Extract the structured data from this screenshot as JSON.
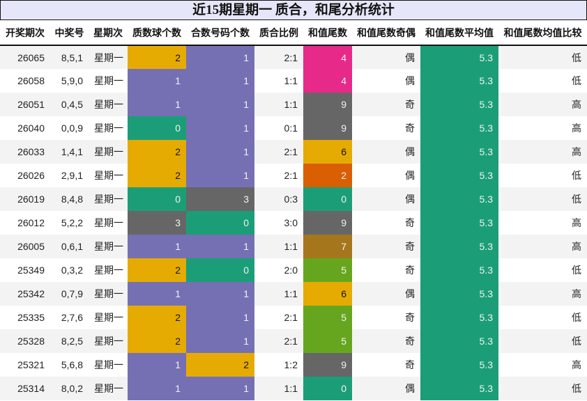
{
  "title": "近15期星期一 质合，和尾分析统计",
  "colors": {
    "yellow": "#e6ab02",
    "purple": "#7570b3",
    "green": "#1b9e77",
    "gray": "#666666",
    "pink": "#e7298a",
    "orange": "#d95f02",
    "brown": "#a6761d",
    "lime": "#66a61e",
    "title_bg": "#e6e6fa"
  },
  "columns": [
    "开奖期次",
    "中奖号",
    "星期次",
    "质数球个数",
    "合数号码个数",
    "质合比例",
    "和值尾数",
    "和值尾数奇偶",
    "和值尾数平均值",
    "和值尾数均值比较"
  ],
  "rows": [
    {
      "period": "26065",
      "numbers": "8,5,1",
      "weekday": "星期一",
      "prime": "2",
      "composite": "1",
      "ratio": "2:1",
      "tail": "4",
      "parity": "偶",
      "avg": "5.3",
      "compare": "低"
    },
    {
      "period": "26058",
      "numbers": "5,9,0",
      "weekday": "星期一",
      "prime": "1",
      "composite": "1",
      "ratio": "1:1",
      "tail": "4",
      "parity": "偶",
      "avg": "5.3",
      "compare": "低"
    },
    {
      "period": "26051",
      "numbers": "0,4,5",
      "weekday": "星期一",
      "prime": "1",
      "composite": "1",
      "ratio": "1:1",
      "tail": "9",
      "parity": "奇",
      "avg": "5.3",
      "compare": "高"
    },
    {
      "period": "26040",
      "numbers": "0,0,9",
      "weekday": "星期一",
      "prime": "0",
      "composite": "1",
      "ratio": "0:1",
      "tail": "9",
      "parity": "奇",
      "avg": "5.3",
      "compare": "高"
    },
    {
      "period": "26033",
      "numbers": "1,4,1",
      "weekday": "星期一",
      "prime": "2",
      "composite": "1",
      "ratio": "2:1",
      "tail": "6",
      "parity": "偶",
      "avg": "5.3",
      "compare": "高"
    },
    {
      "period": "26026",
      "numbers": "2,9,1",
      "weekday": "星期一",
      "prime": "2",
      "composite": "1",
      "ratio": "2:1",
      "tail": "2",
      "parity": "偶",
      "avg": "5.3",
      "compare": "低"
    },
    {
      "period": "26019",
      "numbers": "8,4,8",
      "weekday": "星期一",
      "prime": "0",
      "composite": "3",
      "ratio": "0:3",
      "tail": "0",
      "parity": "偶",
      "avg": "5.3",
      "compare": "低"
    },
    {
      "period": "26012",
      "numbers": "5,2,2",
      "weekday": "星期一",
      "prime": "3",
      "composite": "0",
      "ratio": "3:0",
      "tail": "9",
      "parity": "奇",
      "avg": "5.3",
      "compare": "高"
    },
    {
      "period": "26005",
      "numbers": "0,6,1",
      "weekday": "星期一",
      "prime": "1",
      "composite": "1",
      "ratio": "1:1",
      "tail": "7",
      "parity": "奇",
      "avg": "5.3",
      "compare": "高"
    },
    {
      "period": "25349",
      "numbers": "0,3,2",
      "weekday": "星期一",
      "prime": "2",
      "composite": "0",
      "ratio": "2:0",
      "tail": "5",
      "parity": "奇",
      "avg": "5.3",
      "compare": "低"
    },
    {
      "period": "25342",
      "numbers": "0,7,9",
      "weekday": "星期一",
      "prime": "1",
      "composite": "1",
      "ratio": "1:1",
      "tail": "6",
      "parity": "偶",
      "avg": "5.3",
      "compare": "高"
    },
    {
      "period": "25335",
      "numbers": "2,7,6",
      "weekday": "星期一",
      "prime": "2",
      "composite": "1",
      "ratio": "2:1",
      "tail": "5",
      "parity": "奇",
      "avg": "5.3",
      "compare": "低"
    },
    {
      "period": "25328",
      "numbers": "8,2,5",
      "weekday": "星期一",
      "prime": "2",
      "composite": "1",
      "ratio": "2:1",
      "tail": "5",
      "parity": "奇",
      "avg": "5.3",
      "compare": "低"
    },
    {
      "period": "25321",
      "numbers": "5,6,8",
      "weekday": "星期一",
      "prime": "1",
      "composite": "2",
      "ratio": "1:2",
      "tail": "9",
      "parity": "奇",
      "avg": "5.3",
      "compare": "高"
    },
    {
      "period": "25314",
      "numbers": "8,0,2",
      "weekday": "星期一",
      "prime": "1",
      "composite": "1",
      "ratio": "1:1",
      "tail": "0",
      "parity": "偶",
      "avg": "5.3",
      "compare": "低"
    }
  ],
  "chart_data": {
    "type": "table",
    "title": "近15期星期一 质合，和尾分析统计",
    "columns": [
      "开奖期次",
      "中奖号",
      "星期次",
      "质数球个数",
      "合数号码个数",
      "质合比例",
      "和值尾数",
      "和值尾数奇偶",
      "和值尾数平均值",
      "和值尾数均值比较"
    ],
    "cell_color_map": {
      "count": {
        "0": "#1b9e77",
        "1": "#7570b3",
        "2": "#e6ab02",
        "3": "#666666"
      },
      "tail": {
        "0": "#1b9e77",
        "2": "#d95f02",
        "4": "#e7298a",
        "5": "#66a61e",
        "6": "#e6ab02",
        "7": "#a6761d",
        "9": "#666666"
      },
      "avg": "#1b9e77"
    },
    "rows": [
      [
        "26065",
        "8,5,1",
        "星期一",
        2,
        1,
        "2:1",
        4,
        "偶",
        5.3,
        "低"
      ],
      [
        "26058",
        "5,9,0",
        "星期一",
        1,
        1,
        "1:1",
        4,
        "偶",
        5.3,
        "低"
      ],
      [
        "26051",
        "0,4,5",
        "星期一",
        1,
        1,
        "1:1",
        9,
        "奇",
        5.3,
        "高"
      ],
      [
        "26040",
        "0,0,9",
        "星期一",
        0,
        1,
        "0:1",
        9,
        "奇",
        5.3,
        "高"
      ],
      [
        "26033",
        "1,4,1",
        "星期一",
        2,
        1,
        "2:1",
        6,
        "偶",
        5.3,
        "高"
      ],
      [
        "26026",
        "2,9,1",
        "星期一",
        2,
        1,
        "2:1",
        2,
        "偶",
        5.3,
        "低"
      ],
      [
        "26019",
        "8,4,8",
        "星期一",
        0,
        3,
        "0:3",
        0,
        "偶",
        5.3,
        "低"
      ],
      [
        "26012",
        "5,2,2",
        "星期一",
        3,
        0,
        "3:0",
        9,
        "奇",
        5.3,
        "高"
      ],
      [
        "26005",
        "0,6,1",
        "星期一",
        1,
        1,
        "1:1",
        7,
        "奇",
        5.3,
        "高"
      ],
      [
        "25349",
        "0,3,2",
        "星期一",
        2,
        0,
        "2:0",
        5,
        "奇",
        5.3,
        "低"
      ],
      [
        "25342",
        "0,7,9",
        "星期一",
        1,
        1,
        "1:1",
        6,
        "偶",
        5.3,
        "高"
      ],
      [
        "25335",
        "2,7,6",
        "星期一",
        2,
        1,
        "2:1",
        5,
        "奇",
        5.3,
        "低"
      ],
      [
        "25328",
        "8,2,5",
        "星期一",
        2,
        1,
        "2:1",
        5,
        "奇",
        5.3,
        "低"
      ],
      [
        "25321",
        "5,6,8",
        "星期一",
        1,
        2,
        "1:2",
        9,
        "奇",
        5.3,
        "高"
      ],
      [
        "25314",
        "8,0,2",
        "星期一",
        1,
        1,
        "1:1",
        0,
        "偶",
        5.3,
        "低"
      ]
    ]
  }
}
